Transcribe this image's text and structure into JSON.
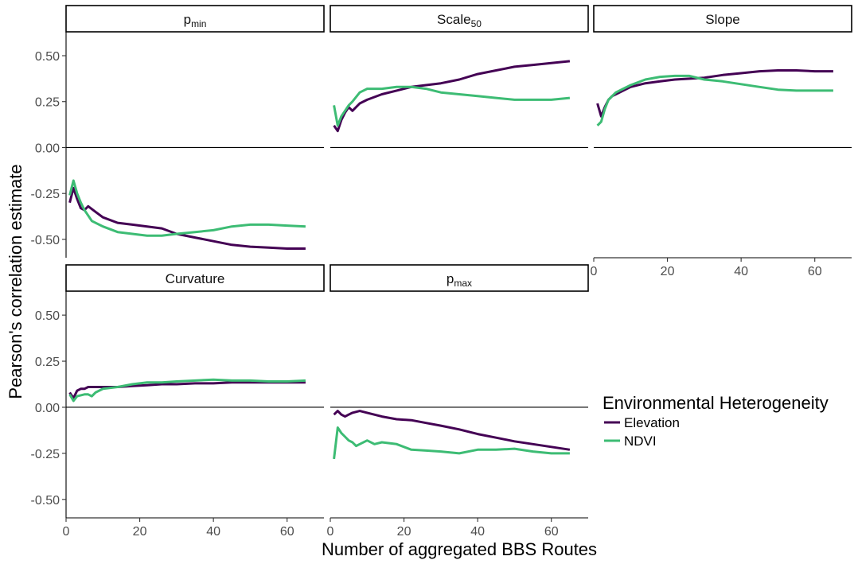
{
  "chart_data": {
    "type": "line",
    "ylabel": "Pearson's correlation estimate",
    "xlabel": "Number of aggregated BBS Routes",
    "xlim": [
      0,
      70
    ],
    "ylim": [
      -0.6,
      0.63
    ],
    "x_ticks": [
      0,
      20,
      40,
      60
    ],
    "x_tick_labels": [
      "0",
      "20",
      "40",
      "60"
    ],
    "y_ticks": [
      0.5,
      0.25,
      0.0,
      -0.25,
      -0.5
    ],
    "y_tick_labels": [
      "0.50",
      "0.25",
      "0.00",
      "-0.25",
      "-0.50"
    ],
    "grid": false,
    "hline_at": 0,
    "legend": {
      "title": "Environmental Heterogeneity",
      "placement": "right",
      "entries": [
        {
          "name": "Elevation",
          "color": "#440154"
        },
        {
          "name": "NDVI",
          "color": "#3dbc74"
        }
      ]
    },
    "panels": [
      {
        "strip": {
          "main": "p",
          "sub": "min"
        },
        "series": [
          {
            "name": "Elevation",
            "color": "#440154",
            "x": [
              1,
              2,
              3,
              4,
              5,
              6,
              8,
              10,
              14,
              18,
              22,
              26,
              30,
              35,
              40,
              45,
              50,
              55,
              60,
              65
            ],
            "y": [
              -0.3,
              -0.22,
              -0.28,
              -0.33,
              -0.34,
              -0.32,
              -0.35,
              -0.38,
              -0.41,
              -0.42,
              -0.43,
              -0.44,
              -0.47,
              -0.49,
              -0.51,
              -0.53,
              -0.54,
              -0.545,
              -0.55,
              -0.55
            ]
          },
          {
            "name": "NDVI",
            "color": "#3dbc74",
            "x": [
              1,
              2,
              3,
              4,
              5,
              7,
              10,
              14,
              18,
              22,
              26,
              30,
              35,
              40,
              45,
              50,
              55,
              60,
              65
            ],
            "y": [
              -0.26,
              -0.18,
              -0.25,
              -0.3,
              -0.34,
              -0.4,
              -0.43,
              -0.46,
              -0.47,
              -0.48,
              -0.48,
              -0.47,
              -0.46,
              -0.45,
              -0.43,
              -0.42,
              -0.42,
              -0.425,
              -0.43
            ]
          }
        ]
      },
      {
        "strip": {
          "main": "Scale",
          "sub": "50"
        },
        "series": [
          {
            "name": "Elevation",
            "color": "#440154",
            "x": [
              1,
              2,
              3,
              4,
              5,
              6,
              8,
              10,
              14,
              18,
              22,
              26,
              30,
              35,
              40,
              45,
              50,
              55,
              60,
              65
            ],
            "y": [
              0.12,
              0.09,
              0.15,
              0.19,
              0.22,
              0.2,
              0.24,
              0.26,
              0.29,
              0.31,
              0.33,
              0.34,
              0.35,
              0.37,
              0.4,
              0.42,
              0.44,
              0.45,
              0.46,
              0.47
            ]
          },
          {
            "name": "NDVI",
            "color": "#3dbc74",
            "x": [
              1,
              2,
              3,
              4,
              5,
              6,
              8,
              10,
              14,
              18,
              22,
              26,
              30,
              35,
              40,
              45,
              50,
              55,
              60,
              65
            ],
            "y": [
              0.23,
              0.12,
              0.17,
              0.2,
              0.23,
              0.25,
              0.3,
              0.32,
              0.32,
              0.33,
              0.33,
              0.32,
              0.3,
              0.29,
              0.28,
              0.27,
              0.26,
              0.26,
              0.26,
              0.27
            ]
          }
        ]
      },
      {
        "strip": {
          "main": "Slope",
          "sub": ""
        },
        "series": [
          {
            "name": "Elevation",
            "color": "#440154",
            "x": [
              1,
              2,
              3,
              4,
              5,
              6,
              8,
              10,
              14,
              18,
              22,
              26,
              30,
              35,
              40,
              45,
              50,
              55,
              60,
              65
            ],
            "y": [
              0.24,
              0.17,
              0.22,
              0.26,
              0.28,
              0.29,
              0.31,
              0.33,
              0.35,
              0.36,
              0.37,
              0.375,
              0.38,
              0.395,
              0.405,
              0.415,
              0.42,
              0.42,
              0.415,
              0.415
            ]
          },
          {
            "name": "NDVI",
            "color": "#3dbc74",
            "x": [
              1,
              2,
              3,
              4,
              5,
              6,
              8,
              10,
              14,
              18,
              22,
              26,
              30,
              35,
              40,
              45,
              50,
              55,
              60,
              65
            ],
            "y": [
              0.12,
              0.14,
              0.21,
              0.26,
              0.28,
              0.3,
              0.32,
              0.34,
              0.37,
              0.385,
              0.39,
              0.39,
              0.37,
              0.36,
              0.345,
              0.33,
              0.315,
              0.31,
              0.31,
              0.31
            ]
          }
        ]
      },
      {
        "strip": {
          "main": "Curvature",
          "sub": ""
        },
        "series": [
          {
            "name": "Elevation",
            "color": "#440154",
            "x": [
              1,
              2,
              3,
              4,
              5,
              6,
              8,
              10,
              14,
              18,
              22,
              26,
              30,
              35,
              40,
              45,
              50,
              55,
              60,
              65
            ],
            "y": [
              0.08,
              0.05,
              0.09,
              0.1,
              0.1,
              0.11,
              0.11,
              0.11,
              0.11,
              0.115,
              0.12,
              0.125,
              0.125,
              0.13,
              0.13,
              0.135,
              0.135,
              0.135,
              0.135,
              0.135
            ]
          },
          {
            "name": "NDVI",
            "color": "#3dbc74",
            "x": [
              1,
              2,
              3,
              4,
              5,
              6,
              7,
              8,
              10,
              14,
              18,
              22,
              26,
              30,
              35,
              40,
              45,
              50,
              55,
              60,
              65
            ],
            "y": [
              0.07,
              0.035,
              0.06,
              0.065,
              0.07,
              0.07,
              0.06,
              0.08,
              0.1,
              0.11,
              0.125,
              0.135,
              0.135,
              0.14,
              0.145,
              0.15,
              0.145,
              0.145,
              0.14,
              0.14,
              0.145
            ]
          }
        ]
      },
      {
        "strip": {
          "main": "p",
          "sub": "max"
        },
        "series": [
          {
            "name": "Elevation",
            "color": "#440154",
            "x": [
              1,
              2,
              3,
              4,
              5,
              6,
              8,
              10,
              14,
              18,
              22,
              26,
              30,
              35,
              40,
              45,
              50,
              55,
              60,
              65
            ],
            "y": [
              -0.04,
              -0.02,
              -0.04,
              -0.05,
              -0.04,
              -0.03,
              -0.02,
              -0.03,
              -0.05,
              -0.065,
              -0.07,
              -0.085,
              -0.1,
              -0.12,
              -0.145,
              -0.165,
              -0.185,
              -0.2,
              -0.215,
              -0.23
            ]
          },
          {
            "name": "NDVI",
            "color": "#3dbc74",
            "x": [
              1,
              2,
              3,
              4,
              5,
              6,
              7,
              8,
              10,
              12,
              14,
              18,
              22,
              26,
              30,
              35,
              40,
              45,
              50,
              55,
              60,
              65
            ],
            "y": [
              -0.28,
              -0.11,
              -0.14,
              -0.16,
              -0.18,
              -0.19,
              -0.21,
              -0.2,
              -0.18,
              -0.2,
              -0.19,
              -0.2,
              -0.23,
              -0.235,
              -0.24,
              -0.25,
              -0.23,
              -0.23,
              -0.225,
              -0.24,
              -0.25,
              -0.25
            ]
          }
        ]
      }
    ]
  }
}
